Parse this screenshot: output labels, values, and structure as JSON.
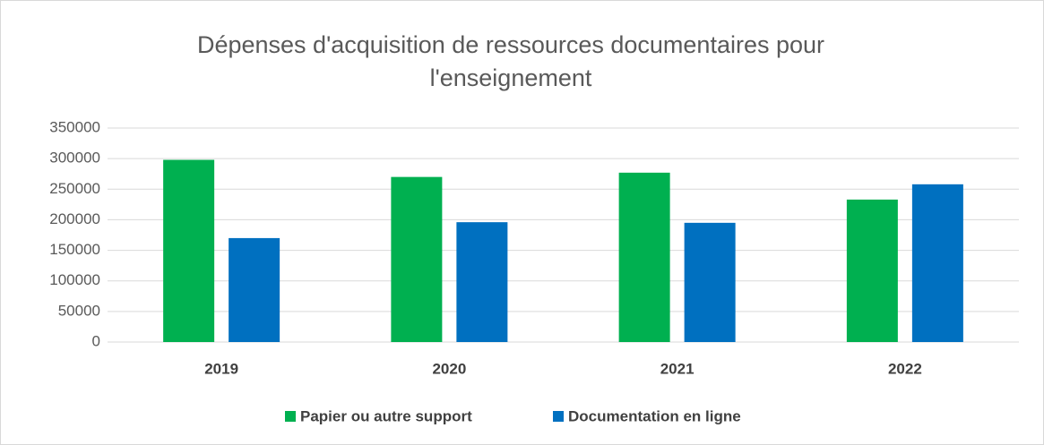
{
  "chart_data": {
    "type": "bar",
    "title": "Dépenses d'acquisition de ressources documentaires pour l'enseignement",
    "categories": [
      "2019",
      "2020",
      "2021",
      "2022"
    ],
    "series": [
      {
        "name": "Papier ou autre support",
        "color": "#00b050",
        "values": [
          298000,
          270000,
          277000,
          233000
        ]
      },
      {
        "name": "Documentation en ligne",
        "color": "#0070c0",
        "values": [
          170000,
          196000,
          195000,
          258000
        ]
      }
    ],
    "ylim": [
      0,
      350000
    ],
    "yticks": [
      0,
      50000,
      100000,
      150000,
      200000,
      250000,
      300000,
      350000
    ],
    "grid": true,
    "legend": "bottom"
  }
}
